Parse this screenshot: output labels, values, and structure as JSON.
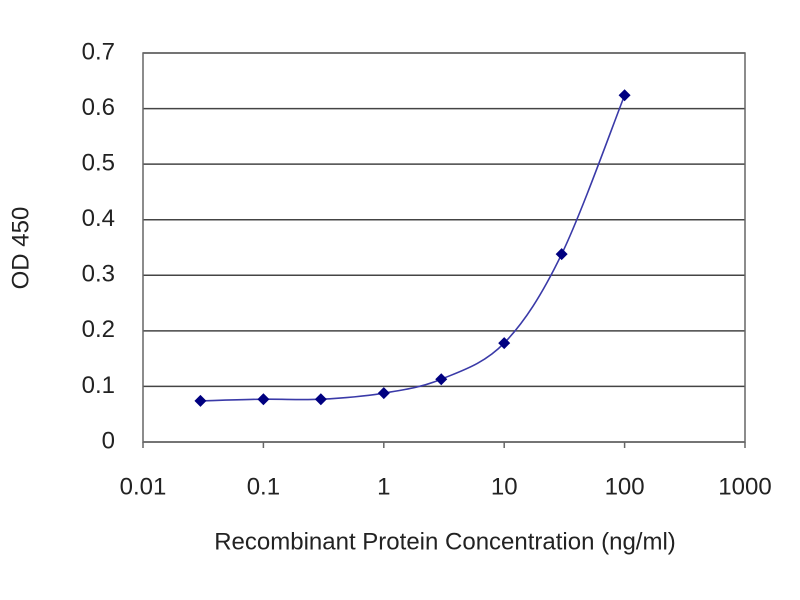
{
  "chart_data": {
    "type": "line",
    "xlabel": "Recombinant Protein Concentration (ng/ml)",
    "ylabel": "OD 450",
    "x": [
      0.03,
      0.1,
      0.3,
      1,
      3,
      10,
      30,
      100
    ],
    "series": [
      {
        "color": "#000080",
        "line_color": "#3a3aa8",
        "values": [
          0.074,
          0.077,
          0.077,
          0.088,
          0.113,
          0.178,
          0.338,
          0.624
        ]
      }
    ],
    "xscale": "log",
    "xlim": [
      0.01,
      1000
    ],
    "xticks": [
      0.01,
      0.1,
      1,
      10,
      100,
      1000
    ],
    "ylim": [
      0,
      0.7
    ],
    "yticks": [
      0,
      0.1,
      0.2,
      0.3,
      0.4,
      0.5,
      0.6,
      0.7
    ],
    "grid": true
  }
}
